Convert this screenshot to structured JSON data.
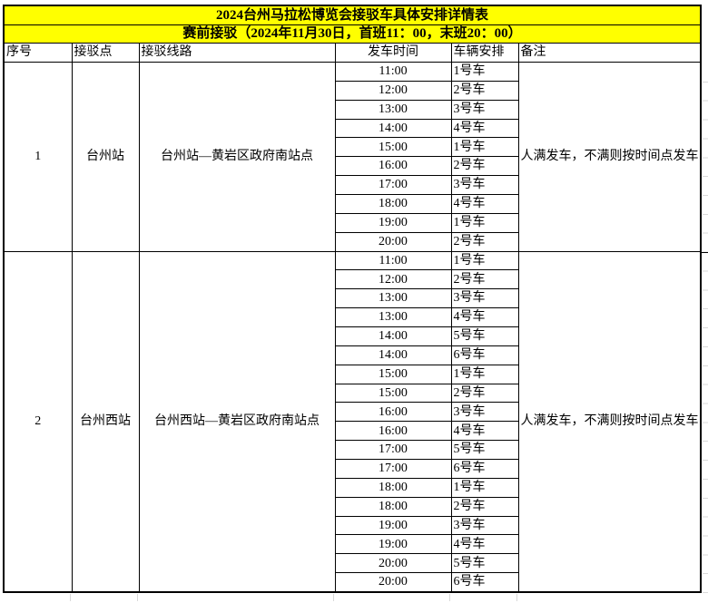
{
  "page": {
    "title": "2024台州马拉松博览会接驳车具体安排详情表",
    "subtitle": "赛前接驳（2024年11月30日，首班11：00，末班20：00）"
  },
  "table": {
    "headers": [
      "序号",
      "接驳点",
      "接驳线路",
      "发车时间",
      "车辆安排",
      "备注"
    ],
    "sections": [
      {
        "seq": "1",
        "point": "台州站",
        "route": "台州站—黄岩区政府南站点",
        "remark": "人满发车，不满则按时间点发车",
        "trips": [
          {
            "time": "11:00",
            "vehicle": "1号车"
          },
          {
            "time": "12:00",
            "vehicle": "2号车"
          },
          {
            "time": "13:00",
            "vehicle": "3号车"
          },
          {
            "time": "14:00",
            "vehicle": "4号车"
          },
          {
            "time": "15:00",
            "vehicle": "1号车"
          },
          {
            "time": "16:00",
            "vehicle": "2号车"
          },
          {
            "time": "17:00",
            "vehicle": "3号车"
          },
          {
            "time": "18:00",
            "vehicle": "4号车"
          },
          {
            "time": "19:00",
            "vehicle": "1号车"
          },
          {
            "time": "20:00",
            "vehicle": "2号车"
          }
        ]
      },
      {
        "seq": "2",
        "point": "台州西站",
        "route": "台州西站—黄岩区政府南站点",
        "remark": "人满发车，不满则按时间点发车",
        "trips": [
          {
            "time": "11:00",
            "vehicle": "1号车"
          },
          {
            "time": "12:00",
            "vehicle": "2号车"
          },
          {
            "time": "13:00",
            "vehicle": "3号车"
          },
          {
            "time": "13:00",
            "vehicle": "4号车"
          },
          {
            "time": "14:00",
            "vehicle": "5号车"
          },
          {
            "time": "14:00",
            "vehicle": "6号车"
          },
          {
            "time": "15:00",
            "vehicle": "1号车"
          },
          {
            "time": "15:00",
            "vehicle": "2号车"
          },
          {
            "time": "16:00",
            "vehicle": "3号车"
          },
          {
            "time": "16:00",
            "vehicle": "4号车"
          },
          {
            "time": "17:00",
            "vehicle": "5号车"
          },
          {
            "time": "17:00",
            "vehicle": "6号车"
          },
          {
            "time": "18:00",
            "vehicle": "1号车"
          },
          {
            "time": "18:00",
            "vehicle": "2号车"
          },
          {
            "time": "19:00",
            "vehicle": "3号车"
          },
          {
            "time": "19:00",
            "vehicle": "4号车"
          },
          {
            "time": "20:00",
            "vehicle": "5号车"
          },
          {
            "time": "20:00",
            "vehicle": "6号车"
          }
        ]
      }
    ]
  },
  "colors": {
    "title_bg": "#ffff00",
    "border": "#000000",
    "faint_grid": "#d9d9d9"
  }
}
